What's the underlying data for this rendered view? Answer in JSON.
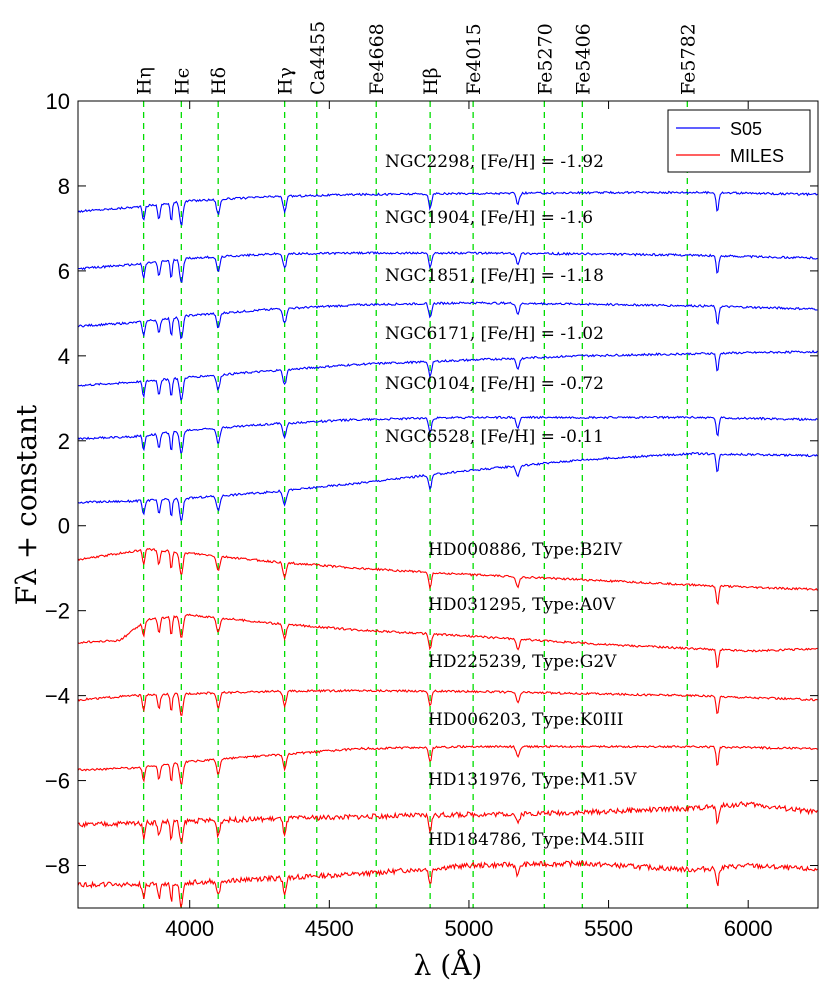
{
  "chart_data": {
    "type": "line",
    "xlabel": "λ (Å)",
    "ylabel": "Fλ + constant",
    "xlim": [
      3600,
      6250
    ],
    "ylim": [
      -9,
      10
    ],
    "xticks": [
      4000,
      4500,
      5000,
      5500,
      6000
    ],
    "yticks": [
      -8,
      -6,
      -4,
      -2,
      0,
      2,
      4,
      6,
      8,
      10
    ],
    "grid": false,
    "legend": {
      "position": "top-right",
      "entries": [
        {
          "name": "S05",
          "color": "#0000ff"
        },
        {
          "name": "MILES",
          "color": "#ff0000"
        }
      ]
    },
    "reference_lines": [
      {
        "label": "Hη",
        "x": 3835
      },
      {
        "label": "Hϵ",
        "x": 3970
      },
      {
        "label": "Hδ",
        "x": 4102
      },
      {
        "label": "Hγ",
        "x": 4340
      },
      {
        "label": "Ca4455",
        "x": 4455
      },
      {
        "label": "Fe4668",
        "x": 4668
      },
      {
        "label": "Hβ",
        "x": 4861
      },
      {
        "label": "Fe4015",
        "x": 5015
      },
      {
        "label": "Fe5270",
        "x": 5270
      },
      {
        "label": "Fe5406",
        "x": 5406
      },
      {
        "label": "Fe5782",
        "x": 5782
      }
    ],
    "reference_line_color": "#00dd00",
    "series": [
      {
        "name": "NGC2298",
        "label": "NGC2298, [Fe/H] = -1.92",
        "set": "S05",
        "color": "#0000ff",
        "x": [
          3600,
          3800,
          4000,
          4300,
          4600,
          5000,
          5400,
          5800,
          6250
        ],
        "values": [
          7.4,
          7.5,
          7.65,
          7.75,
          7.8,
          7.82,
          7.84,
          7.85,
          7.8
        ]
      },
      {
        "name": "NGC1904",
        "label": "NGC1904, [Fe/H] = -1.6",
        "set": "S05",
        "color": "#0000ff",
        "x": [
          3600,
          3800,
          4000,
          4300,
          4600,
          5000,
          5400,
          5800,
          6250
        ],
        "values": [
          6.05,
          6.15,
          6.3,
          6.4,
          6.42,
          6.42,
          6.4,
          6.37,
          6.3
        ]
      },
      {
        "name": "NGC1851",
        "label": "NGC1851, [Fe/H] = -1.18",
        "set": "S05",
        "color": "#0000ff",
        "x": [
          3600,
          3800,
          4000,
          4300,
          4600,
          5000,
          5400,
          5800,
          6250
        ],
        "values": [
          4.7,
          4.78,
          4.95,
          5.1,
          5.2,
          5.25,
          5.22,
          5.18,
          5.1
        ]
      },
      {
        "name": "NGC6171",
        "label": "NGC6171, [Fe/H] = -1.02",
        "set": "S05",
        "color": "#0000ff",
        "x": [
          3600,
          3800,
          4000,
          4300,
          4600,
          5000,
          5400,
          5800,
          6250
        ],
        "values": [
          3.3,
          3.38,
          3.5,
          3.65,
          3.8,
          3.9,
          4.0,
          4.05,
          4.1
        ]
      },
      {
        "name": "NGC0104",
        "label": "NGC0104, [Fe/H] = -0.72",
        "set": "S05",
        "color": "#0000ff",
        "x": [
          3600,
          3800,
          4000,
          4300,
          4600,
          5000,
          5400,
          5800,
          6250
        ],
        "values": [
          2.05,
          2.1,
          2.25,
          2.4,
          2.5,
          2.55,
          2.55,
          2.55,
          2.5
        ]
      },
      {
        "name": "NGC6528",
        "label": "NGC6528, [Fe/H] = -0.11",
        "set": "S05",
        "color": "#0000ff",
        "x": [
          3600,
          3800,
          4000,
          4300,
          4600,
          5000,
          5400,
          5800,
          6250
        ],
        "values": [
          0.55,
          0.58,
          0.65,
          0.8,
          1.0,
          1.3,
          1.55,
          1.7,
          1.65
        ]
      },
      {
        "name": "HD000886",
        "label": "HD000886, Type:B2IV",
        "set": "MILES",
        "color": "#ff0000",
        "x": [
          3600,
          3750,
          3850,
          4000,
          4300,
          4600,
          5000,
          5500,
          6000,
          6250
        ],
        "values": [
          -0.8,
          -0.65,
          -0.55,
          -0.65,
          -0.85,
          -1.0,
          -1.15,
          -1.3,
          -1.45,
          -1.5
        ]
      },
      {
        "name": "HD031295",
        "label": "HD031295, Type:A0V",
        "set": "MILES",
        "color": "#ff0000",
        "x": [
          3600,
          3750,
          3850,
          4000,
          4300,
          4600,
          5000,
          5500,
          6000,
          6250
        ],
        "values": [
          -2.75,
          -2.7,
          -2.2,
          -2.1,
          -2.3,
          -2.45,
          -2.6,
          -2.8,
          -2.95,
          -2.9
        ]
      },
      {
        "name": "HD225239",
        "label": "HD225239, Type:G2V",
        "set": "MILES",
        "color": "#ff0000",
        "x": [
          3600,
          3800,
          4000,
          4300,
          4600,
          5000,
          5400,
          5800,
          6250
        ],
        "values": [
          -4.1,
          -4.0,
          -3.95,
          -3.9,
          -3.88,
          -3.9,
          -3.95,
          -4.0,
          -4.1
        ]
      },
      {
        "name": "HD006203",
        "label": "HD006203, Type:K0III",
        "set": "MILES",
        "color": "#ff0000",
        "x": [
          3600,
          3800,
          4000,
          4300,
          4600,
          5000,
          5400,
          5800,
          6250
        ],
        "values": [
          -5.75,
          -5.7,
          -5.55,
          -5.4,
          -5.25,
          -5.2,
          -5.2,
          -5.2,
          -5.25
        ]
      },
      {
        "name": "HD131976",
        "label": "HD131976, Type:M1.5V",
        "set": "MILES",
        "color": "#ff0000",
        "x": [
          3600,
          3800,
          4000,
          4300,
          4600,
          5000,
          5400,
          5800,
          6000,
          6250
        ],
        "values": [
          -7.05,
          -7.0,
          -6.95,
          -6.9,
          -6.85,
          -6.8,
          -6.75,
          -6.65,
          -6.55,
          -6.75
        ]
      },
      {
        "name": "HD184786",
        "label": "HD184786, Type:M4.5III",
        "set": "MILES",
        "color": "#ff0000",
        "x": [
          3600,
          3800,
          4000,
          4300,
          4600,
          5000,
          5400,
          5800,
          6000,
          6250
        ],
        "values": [
          -8.45,
          -8.45,
          -8.4,
          -8.3,
          -8.2,
          -8.0,
          -7.95,
          -8.1,
          -8.0,
          -8.1
        ]
      }
    ]
  }
}
